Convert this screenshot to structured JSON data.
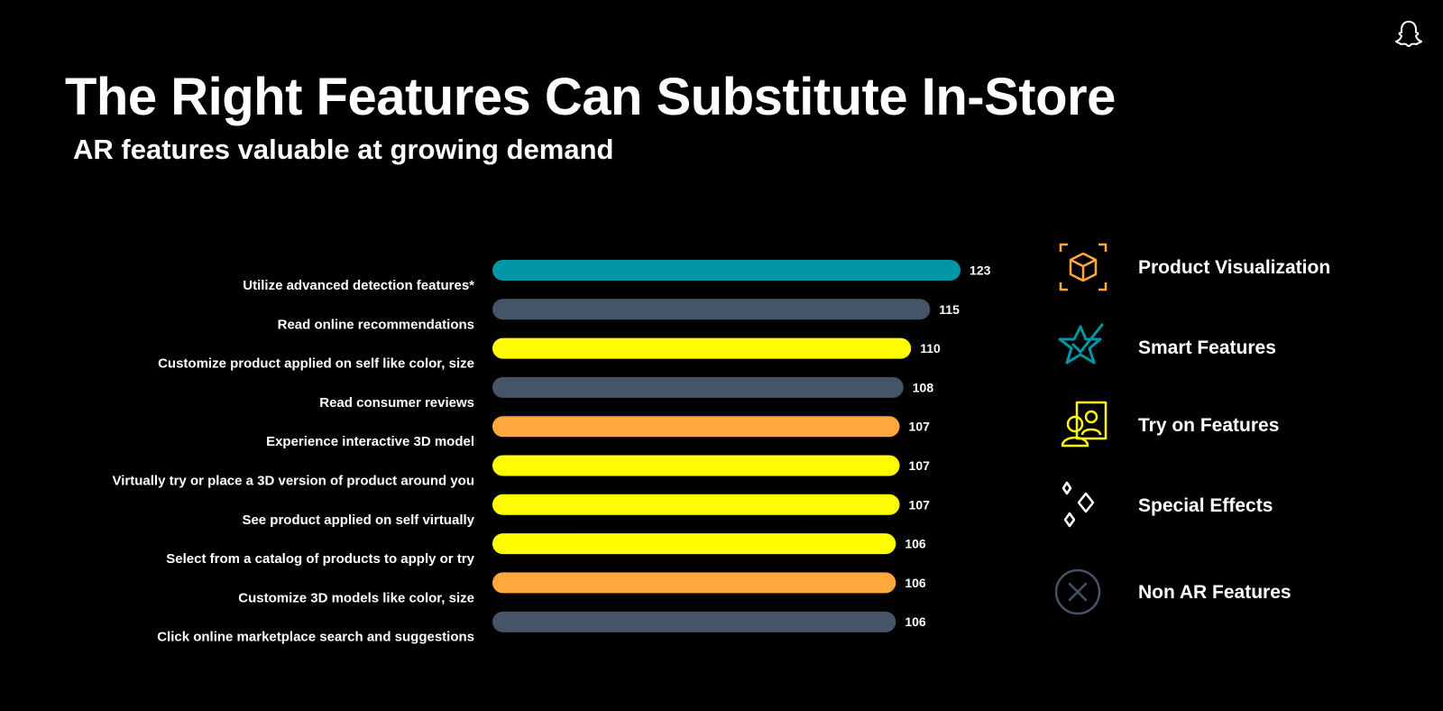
{
  "slide": {
    "title": "The Right Features Can Substitute In-Store",
    "subtitle": "AR features valuable at growing demand"
  },
  "logo": {
    "icon": "ghost-icon"
  },
  "chart_data": {
    "type": "bar",
    "orientation": "horizontal",
    "categories": [
      "Utilize advanced detection features*",
      "Read online recommendations",
      "Customize product applied on self like color, size",
      "Read consumer reviews",
      "Experience interactive 3D model",
      "Virtually try or place a 3D version of product around you",
      "See product applied on self virtually",
      "Select from a catalog of products to apply or try",
      "Customize 3D models like color, size",
      "Click online marketplace search and suggestions"
    ],
    "values": [
      123,
      115,
      110,
      108,
      107,
      107,
      107,
      106,
      106,
      106
    ],
    "value_labels": [
      "123",
      "115",
      "110",
      "108",
      "107",
      "107",
      "107",
      "106",
      "106",
      "106"
    ],
    "groups": [
      "Smart Features",
      "Non AR Features",
      "Try on Features",
      "Non AR Features",
      "Product Visualization",
      "Try on Features",
      "Try on Features",
      "Try on Features",
      "Product Visualization",
      "Non AR Features"
    ],
    "group_colors": {
      "Product Visualization": "#FFA83E",
      "Smart Features": "#0096A6",
      "Try on Features": "#FFFC00",
      "Special Effects": "#FFFFFF",
      "Non AR Features": "#465468"
    },
    "grid": false,
    "legend_position": "right"
  },
  "legend": {
    "items": [
      {
        "label": "Product Visualization",
        "icon": "cube-icon",
        "color": "#FFA83E"
      },
      {
        "label": "Smart Features",
        "icon": "star-check-icon",
        "color": "#0096A6"
      },
      {
        "label": "Try on Features",
        "icon": "people-frame-icon",
        "color": "#FFFC00"
      },
      {
        "label": "Special Effects",
        "icon": "sparkles-icon",
        "color": "#FFFFFF"
      },
      {
        "label": "Non AR Features",
        "icon": "x-circle-icon",
        "color": "#465468"
      }
    ]
  }
}
